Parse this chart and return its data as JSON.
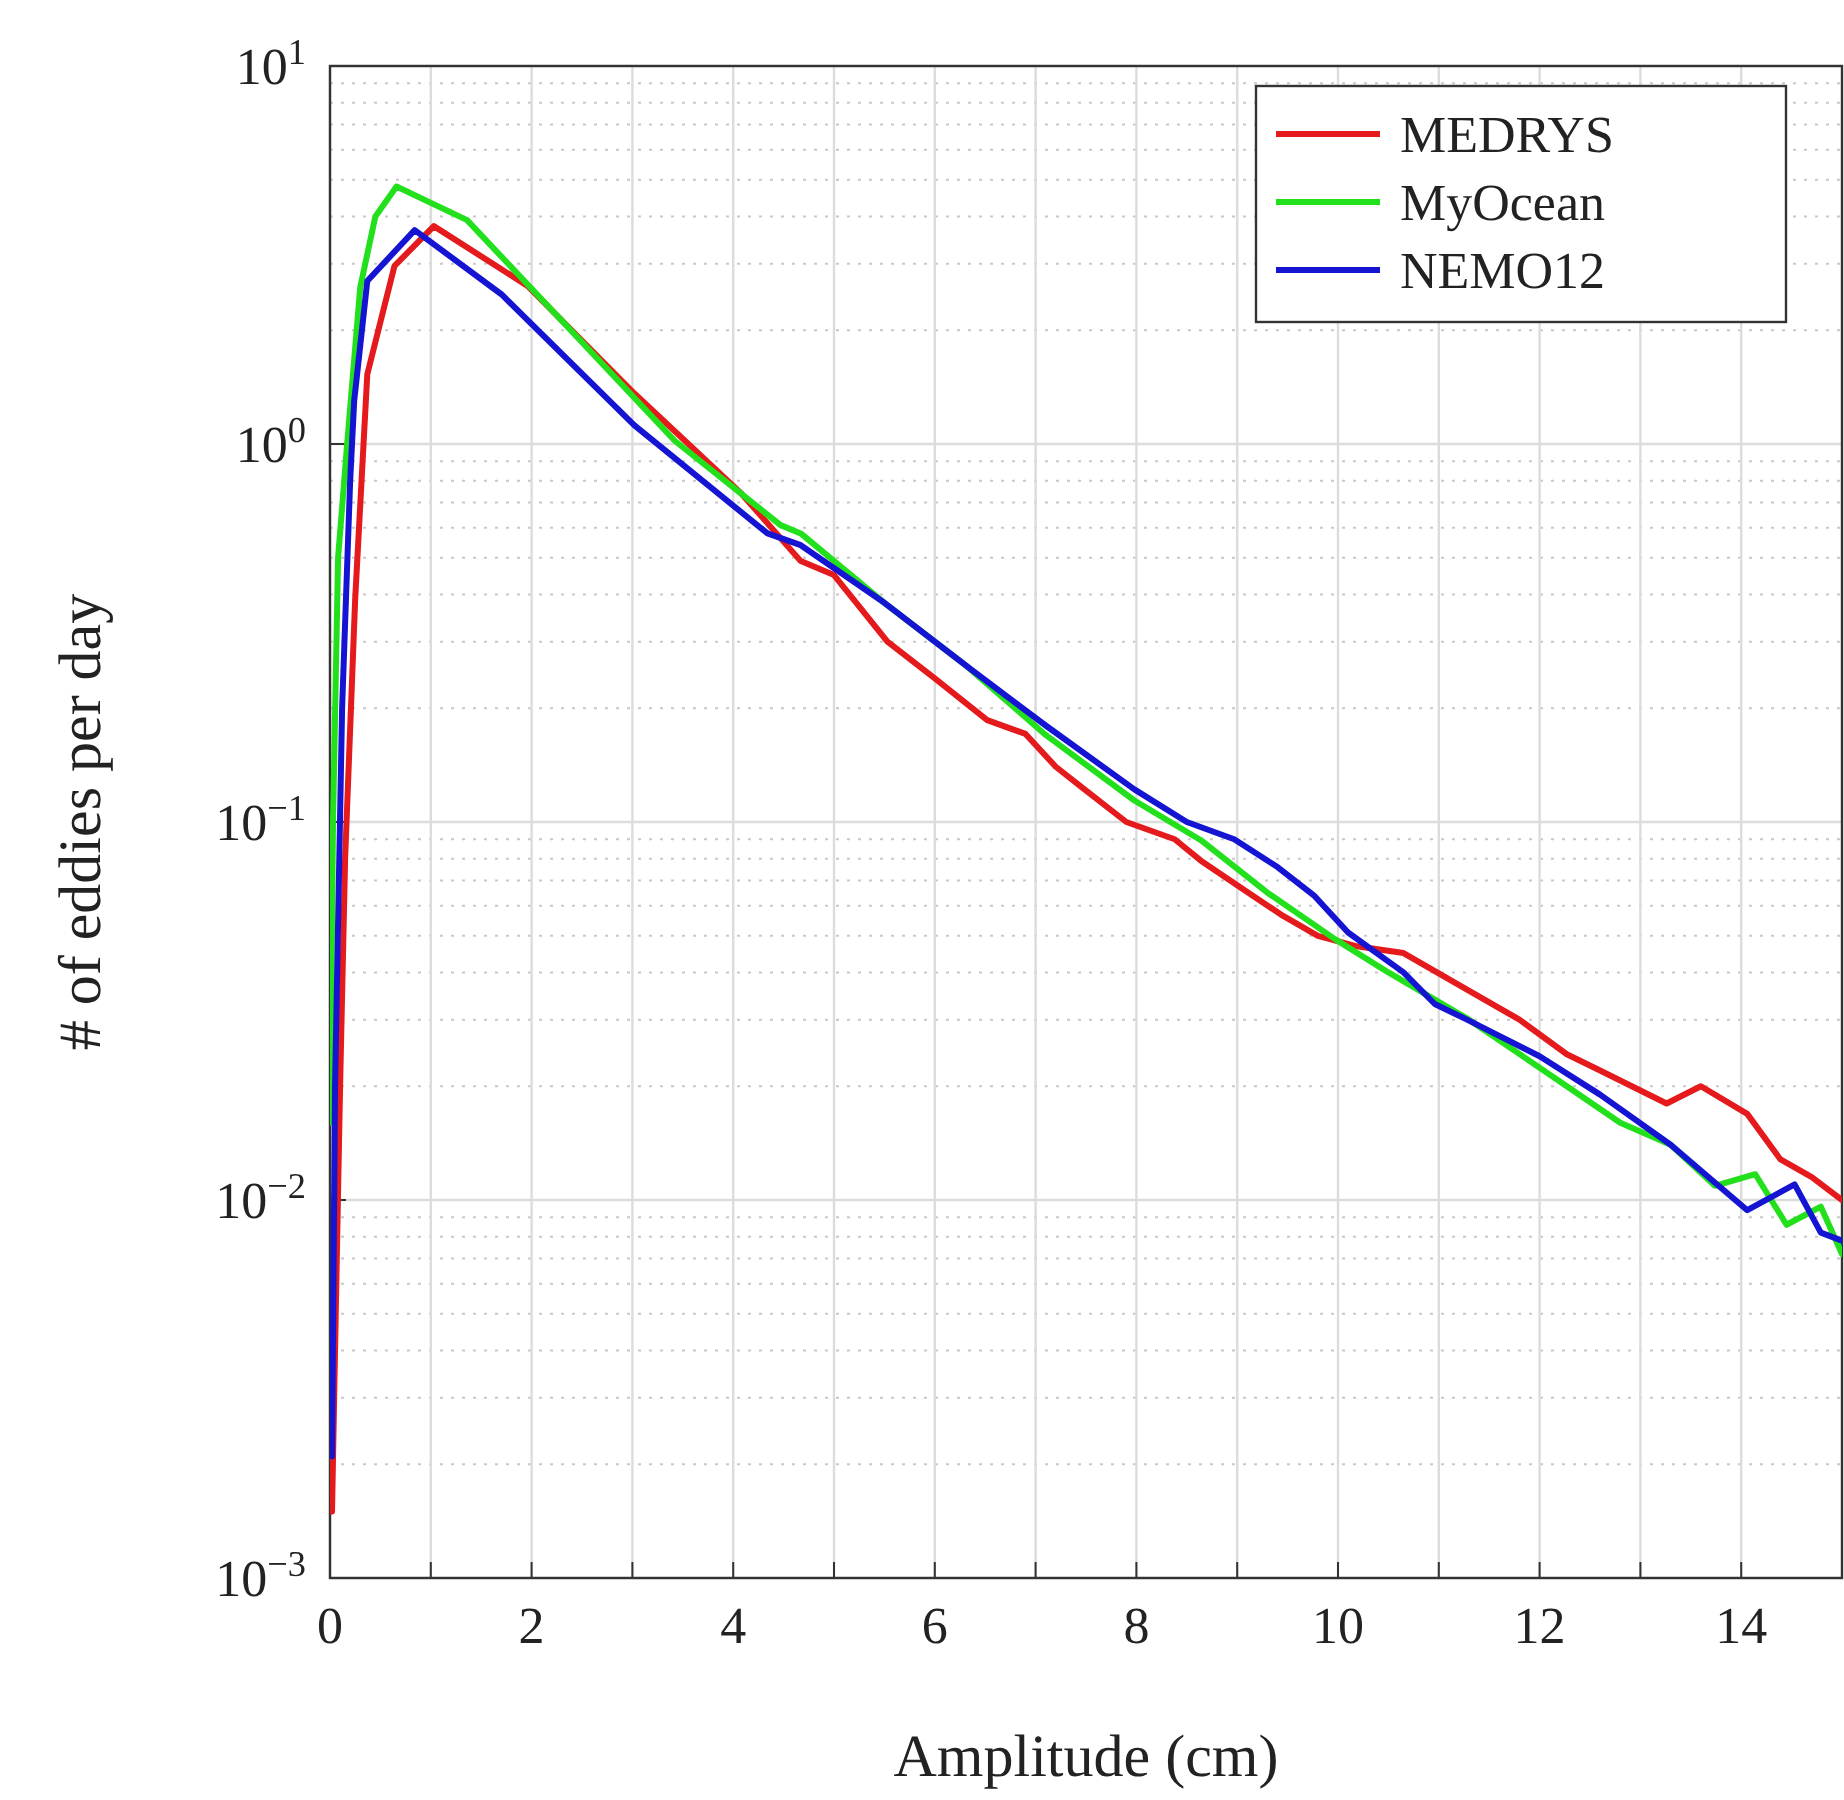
{
  "chart_data": {
    "type": "line",
    "xlabel": "Amplitude (cm)",
    "ylabel": "# of eddies per day",
    "log": "y",
    "grid": true,
    "legend": "top right",
    "line_style": "solid",
    "marker": "none",
    "xlim": [
      0,
      15
    ],
    "xticks": [
      0,
      {
        "value": 1,
        "label": null
      },
      2,
      {
        "value": 3,
        "label": null
      },
      4,
      {
        "value": 5,
        "label": null
      },
      6,
      {
        "value": 7,
        "label": null
      },
      8,
      {
        "value": 9,
        "label": null
      },
      10,
      {
        "value": 11,
        "label": null
      },
      12,
      {
        "value": 13,
        "label": null
      },
      14
    ],
    "ylim": [
      0.001,
      10
    ],
    "yticks": [
      {
        "value": 0.001,
        "label": "10$^{−3}$"
      },
      {
        "value": 0.01,
        "label": "10$^{−2}$"
      },
      {
        "value": 0.1,
        "label": "10$^{−1}$"
      },
      {
        "value": 1,
        "label": "10$^{0}$"
      },
      {
        "value": 10,
        "label": "10$^{1}$"
      }
    ],
    "series": [
      {
        "name": "MEDRYS",
        "color": "#e41a1c",
        "x": [
          0.02,
          0.05,
          0.1,
          0.15,
          0.25,
          0.37,
          0.64,
          1.03,
          1.96,
          3.02,
          4.08,
          4.67,
          5.0,
          5.53,
          6.0,
          6.52,
          6.9,
          7.2,
          7.45,
          7.9,
          8.38,
          8.64,
          9.0,
          9.43,
          9.8,
          10.17,
          10.65,
          11.28,
          11.8,
          12.27,
          12.6,
          13.26,
          13.6,
          14.06,
          14.39,
          14.7,
          15
        ],
        "values": [
          0.0015,
          0.004,
          0.02,
          0.08,
          0.39,
          1.53,
          2.96,
          3.77,
          2.62,
          1.36,
          0.74,
          0.49,
          0.45,
          0.3,
          0.24,
          0.186,
          0.171,
          0.14,
          0.124,
          0.1,
          0.09,
          0.079,
          0.068,
          0.057,
          0.05,
          0.047,
          0.045,
          0.036,
          0.03,
          0.0243,
          0.022,
          0.018,
          0.02,
          0.0169,
          0.0128,
          0.0115,
          0.01
        ]
      },
      {
        "name": "MyOcean",
        "color": "#22e01c",
        "x": [
          0.0,
          0.03,
          0.08,
          0.17,
          0.3,
          0.45,
          0.66,
          1.36,
          2.35,
          3.42,
          4.47,
          4.67,
          5.5,
          6.32,
          7.1,
          7.98,
          8.64,
          9.3,
          9.97,
          10.5,
          11.3,
          12.27,
          12.8,
          13.3,
          13.74,
          14.14,
          14.45,
          14.79,
          15
        ],
        "values": [
          0.016,
          0.1,
          0.5,
          1.0,
          2.6,
          4.0,
          4.8,
          3.91,
          2.05,
          1.02,
          0.61,
          0.58,
          0.38,
          0.258,
          0.17,
          0.114,
          0.0895,
          0.065,
          0.049,
          0.04,
          0.03,
          0.02,
          0.016,
          0.014,
          0.0109,
          0.0117,
          0.0086,
          0.0096,
          0.0072
        ]
      },
      {
        "name": "NEMO12",
        "color": "#1414d2",
        "x": [
          0.02,
          0.05,
          0.12,
          0.2,
          0.24,
          0.37,
          0.84,
          1.7,
          3.02,
          4.34,
          4.67,
          5.5,
          6.32,
          7.1,
          7.98,
          8.5,
          8.97,
          9.4,
          9.76,
          10.1,
          10.65,
          10.96,
          11.28,
          12.0,
          12.6,
          13.3,
          14.06,
          14.53,
          14.79,
          15
        ],
        "values": [
          0.0021,
          0.02,
          0.2,
          0.8,
          1.3,
          2.7,
          3.68,
          2.49,
          1.12,
          0.58,
          0.54,
          0.38,
          0.258,
          0.18,
          0.122,
          0.1,
          0.09,
          0.076,
          0.064,
          0.051,
          0.04,
          0.033,
          0.03,
          0.024,
          0.019,
          0.014,
          0.0094,
          0.011,
          0.0082,
          0.0078
        ]
      }
    ]
  }
}
